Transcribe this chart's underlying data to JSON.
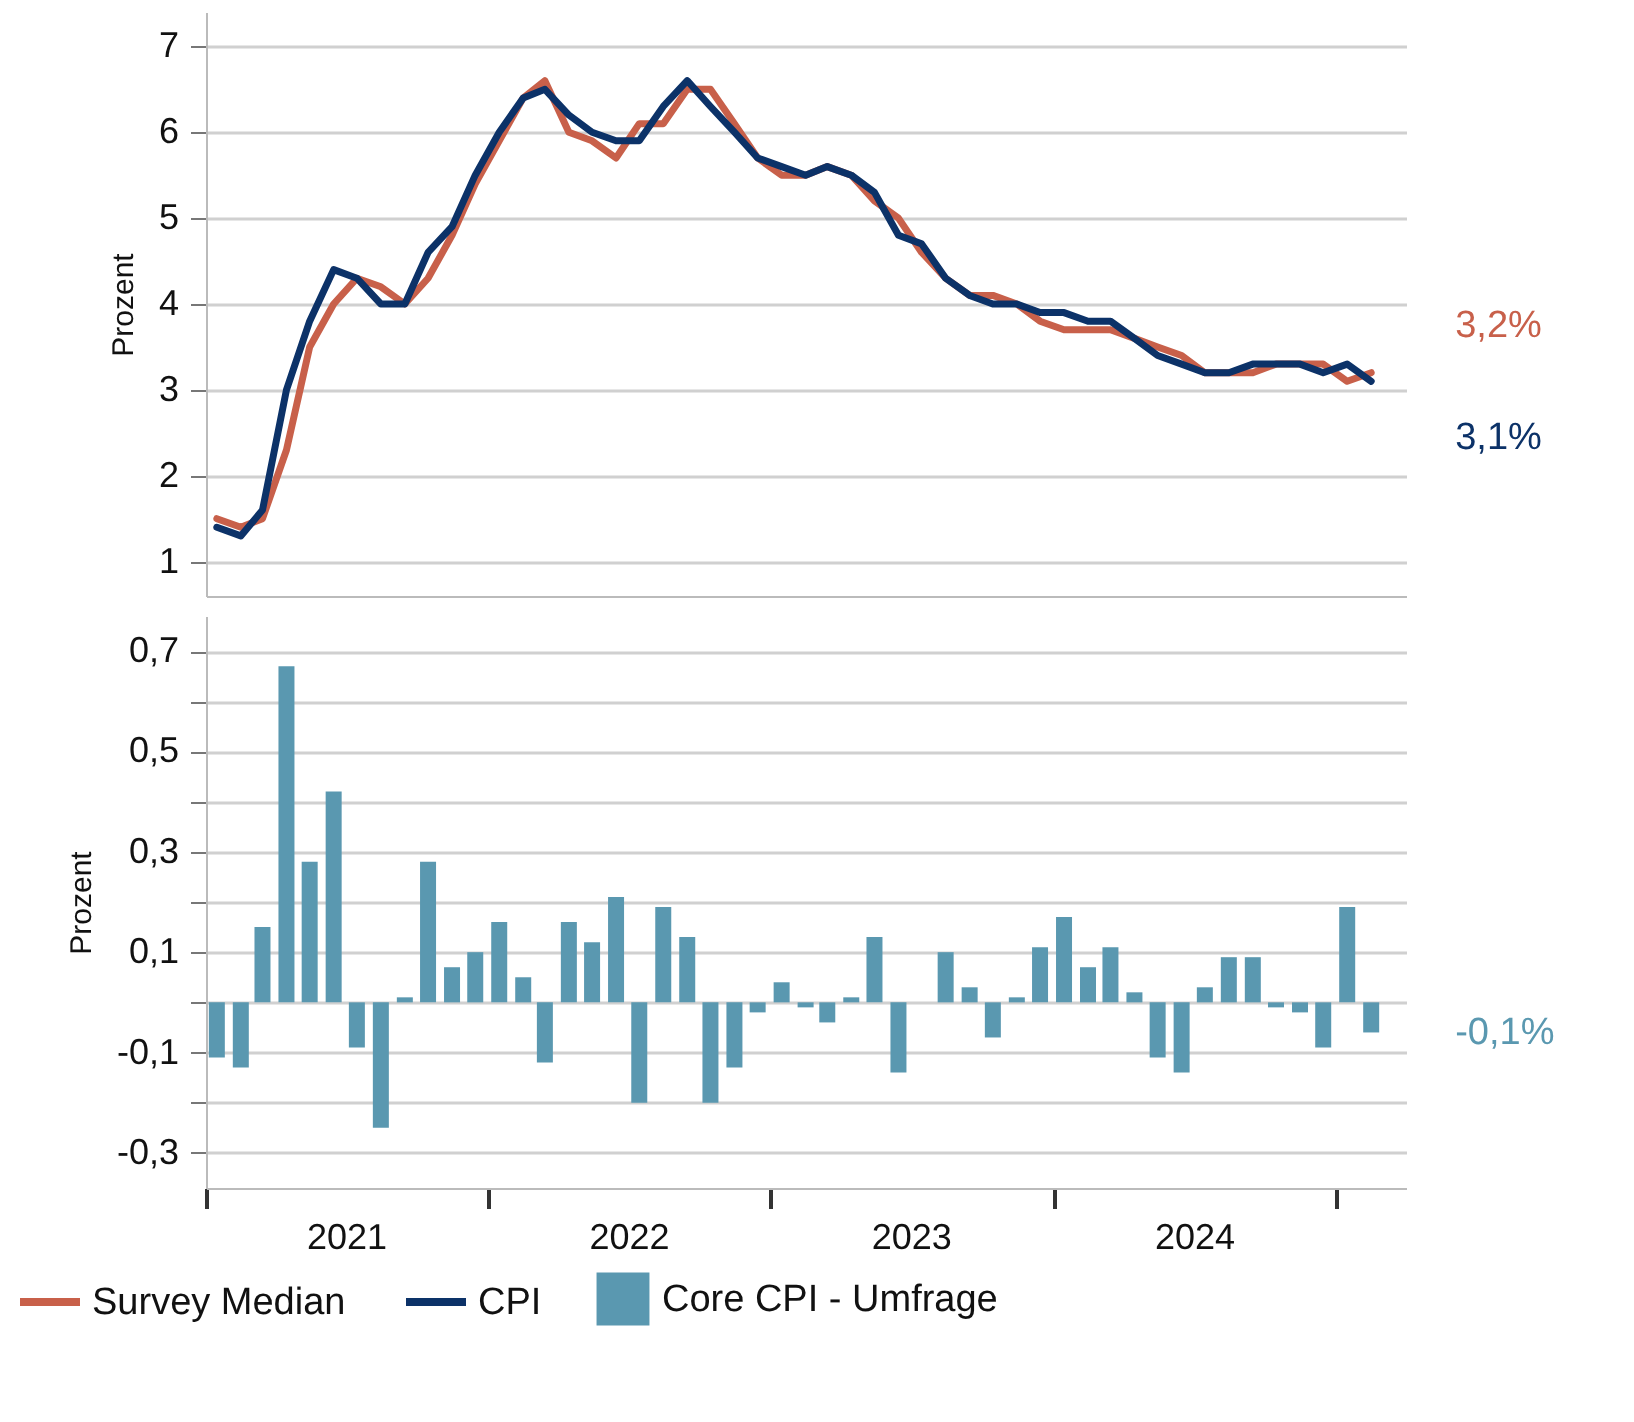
{
  "chart_data": [
    {
      "type": "line",
      "ylabel": "Prozent",
      "x": [
        "2021-01-15",
        "2021-02-15",
        "2021-03-15",
        "2021-04-15",
        "2021-05-15",
        "2021-06-15",
        "2021-07-15",
        "2021-08-15",
        "2021-09-15",
        "2021-10-15",
        "2021-11-15",
        "2021-12-15",
        "2022-01-15",
        "2022-02-15",
        "2022-03-15",
        "2022-04-15",
        "2022-05-15",
        "2022-06-15",
        "2022-07-15",
        "2022-08-15",
        "2022-09-15",
        "2022-10-15",
        "2022-11-15",
        "2022-12-15",
        "2023-01-15",
        "2023-02-15",
        "2023-03-15",
        "2023-04-15",
        "2023-05-15",
        "2023-06-15",
        "2023-07-15",
        "2023-08-15",
        "2023-09-15",
        "2023-10-15",
        "2023-11-15",
        "2023-12-15",
        "2024-01-15",
        "2024-02-15",
        "2024-03-15",
        "2024-04-15",
        "2024-05-15",
        "2024-06-15",
        "2024-07-15",
        "2024-08-15",
        "2024-09-15",
        "2024-10-15",
        "2024-11-15",
        "2024-12-15",
        "2025-01-15",
        "2025-02-15"
      ],
      "series": [
        {
          "name": "Survey Median",
          "color": "#c8604a",
          "values": [
            1.5,
            1.4,
            1.5,
            2.3,
            3.5,
            4.0,
            4.3,
            4.2,
            4.0,
            4.3,
            4.8,
            5.4,
            5.9,
            6.4,
            6.6,
            6.0,
            5.9,
            5.7,
            6.1,
            6.1,
            6.5,
            6.5,
            6.1,
            5.7,
            5.5,
            5.5,
            5.6,
            5.5,
            5.2,
            5.0,
            4.6,
            4.3,
            4.1,
            4.1,
            4.0,
            3.8,
            3.7,
            3.7,
            3.7,
            3.6,
            3.5,
            3.4,
            3.2,
            3.2,
            3.2,
            3.3,
            3.3,
            3.3,
            3.1,
            3.2
          ]
        },
        {
          "name": "CPI",
          "color": "#0c3268",
          "values": [
            1.4,
            1.3,
            1.6,
            3.0,
            3.8,
            4.4,
            4.3,
            4.0,
            4.0,
            4.6,
            4.9,
            5.5,
            6.0,
            6.4,
            6.5,
            6.2,
            6.0,
            5.9,
            5.9,
            6.3,
            6.6,
            6.3,
            6.0,
            5.7,
            5.6,
            5.5,
            5.6,
            5.5,
            5.3,
            4.8,
            4.7,
            4.3,
            4.1,
            4.0,
            4.0,
            3.9,
            3.9,
            3.8,
            3.8,
            3.6,
            3.4,
            3.3,
            3.2,
            3.2,
            3.3,
            3.3,
            3.3,
            3.2,
            3.3,
            3.1
          ]
        }
      ],
      "xlim": [
        "2021-01-01",
        "2025-04-01"
      ],
      "ylim": [
        0.6,
        7.4
      ],
      "yticks": [
        1,
        2,
        3,
        4,
        5,
        6,
        7
      ],
      "grid": "y",
      "tick_labels": "y",
      "legend": "bottom",
      "annotations": [
        {
          "text": "3,2%",
          "x": "2025-02-15",
          "y": 3.2
        },
        {
          "text": "3,1%",
          "x": "2025-02-15",
          "y": 3.1
        }
      ]
    },
    {
      "type": "bar",
      "ylabel": "Prozent",
      "x": [
        "2021-01-15",
        "2021-02-15",
        "2021-03-15",
        "2021-04-15",
        "2021-05-15",
        "2021-06-15",
        "2021-07-15",
        "2021-08-15",
        "2021-09-15",
        "2021-10-15",
        "2021-11-15",
        "2021-12-15",
        "2022-01-15",
        "2022-02-15",
        "2022-03-15",
        "2022-04-15",
        "2022-05-15",
        "2022-06-15",
        "2022-07-15",
        "2022-08-15",
        "2022-09-15",
        "2022-10-15",
        "2022-11-15",
        "2022-12-15",
        "2023-01-15",
        "2023-02-15",
        "2023-03-15",
        "2023-04-15",
        "2023-05-15",
        "2023-06-15",
        "2023-07-15",
        "2023-08-15",
        "2023-09-15",
        "2023-10-15",
        "2023-11-15",
        "2023-12-15",
        "2024-01-15",
        "2024-02-15",
        "2024-03-15",
        "2024-04-15",
        "2024-05-15",
        "2024-06-15",
        "2024-07-15",
        "2024-08-15",
        "2024-09-15",
        "2024-10-15",
        "2024-11-15",
        "2024-12-15",
        "2025-01-15",
        "2025-02-15"
      ],
      "series": [
        {
          "name": "Core CPI - Umfrage",
          "color": "#5a98b0",
          "values": [
            -0.11,
            -0.13,
            0.15,
            0.67,
            0.28,
            0.42,
            -0.09,
            -0.25,
            0.01,
            0.28,
            0.07,
            0.1,
            0.16,
            0.05,
            -0.12,
            0.16,
            0.12,
            0.21,
            -0.2,
            0.19,
            0.13,
            -0.2,
            -0.13,
            -0.02,
            0.04,
            -0.01,
            -0.04,
            0.01,
            0.13,
            -0.14,
            0.0,
            0.1,
            0.03,
            -0.07,
            0.01,
            0.11,
            0.17,
            0.07,
            0.11,
            0.02,
            -0.11,
            -0.14,
            0.03,
            0.09,
            0.09,
            -0.01,
            -0.02,
            -0.09,
            0.19,
            -0.06
          ]
        }
      ],
      "xlim": [
        "2021-01-01",
        "2025-04-01"
      ],
      "xticks": [
        {
          "value": "2021-01-01",
          "label": null
        },
        {
          "value": "2021-07-01",
          "label": "2021"
        },
        {
          "value": "2022-01-01",
          "label": null
        },
        {
          "value": "2022-07-01",
          "label": "2022"
        },
        {
          "value": "2023-01-01",
          "label": null
        },
        {
          "value": "2023-07-01",
          "label": "2023"
        },
        {
          "value": "2024-01-01",
          "label": null
        },
        {
          "value": "2024-07-01",
          "label": "2024"
        },
        {
          "value": "2025-01-01",
          "label": null
        }
      ],
      "ylim": [
        -0.37,
        0.77
      ],
      "yticks": [
        {
          "value": -0.3,
          "label": "-0,3"
        },
        {
          "value": -0.2,
          "label": null
        },
        {
          "value": -0.1,
          "label": "-0,1"
        },
        {
          "value": 0,
          "label": null
        },
        {
          "value": 0.1,
          "label": "0,1"
        },
        {
          "value": 0.2,
          "label": null
        },
        {
          "value": 0.3,
          "label": "0,3"
        },
        {
          "value": 0.4,
          "label": null
        },
        {
          "value": 0.5,
          "label": "0,5"
        },
        {
          "value": 0.6,
          "label": null
        },
        {
          "value": 0.7,
          "label": "0,7"
        }
      ],
      "grid": "y",
      "legend": "bottom",
      "annotations": [
        {
          "text": "-0,1%",
          "x": "2025-02-15",
          "y": -0.06
        }
      ]
    }
  ]
}
